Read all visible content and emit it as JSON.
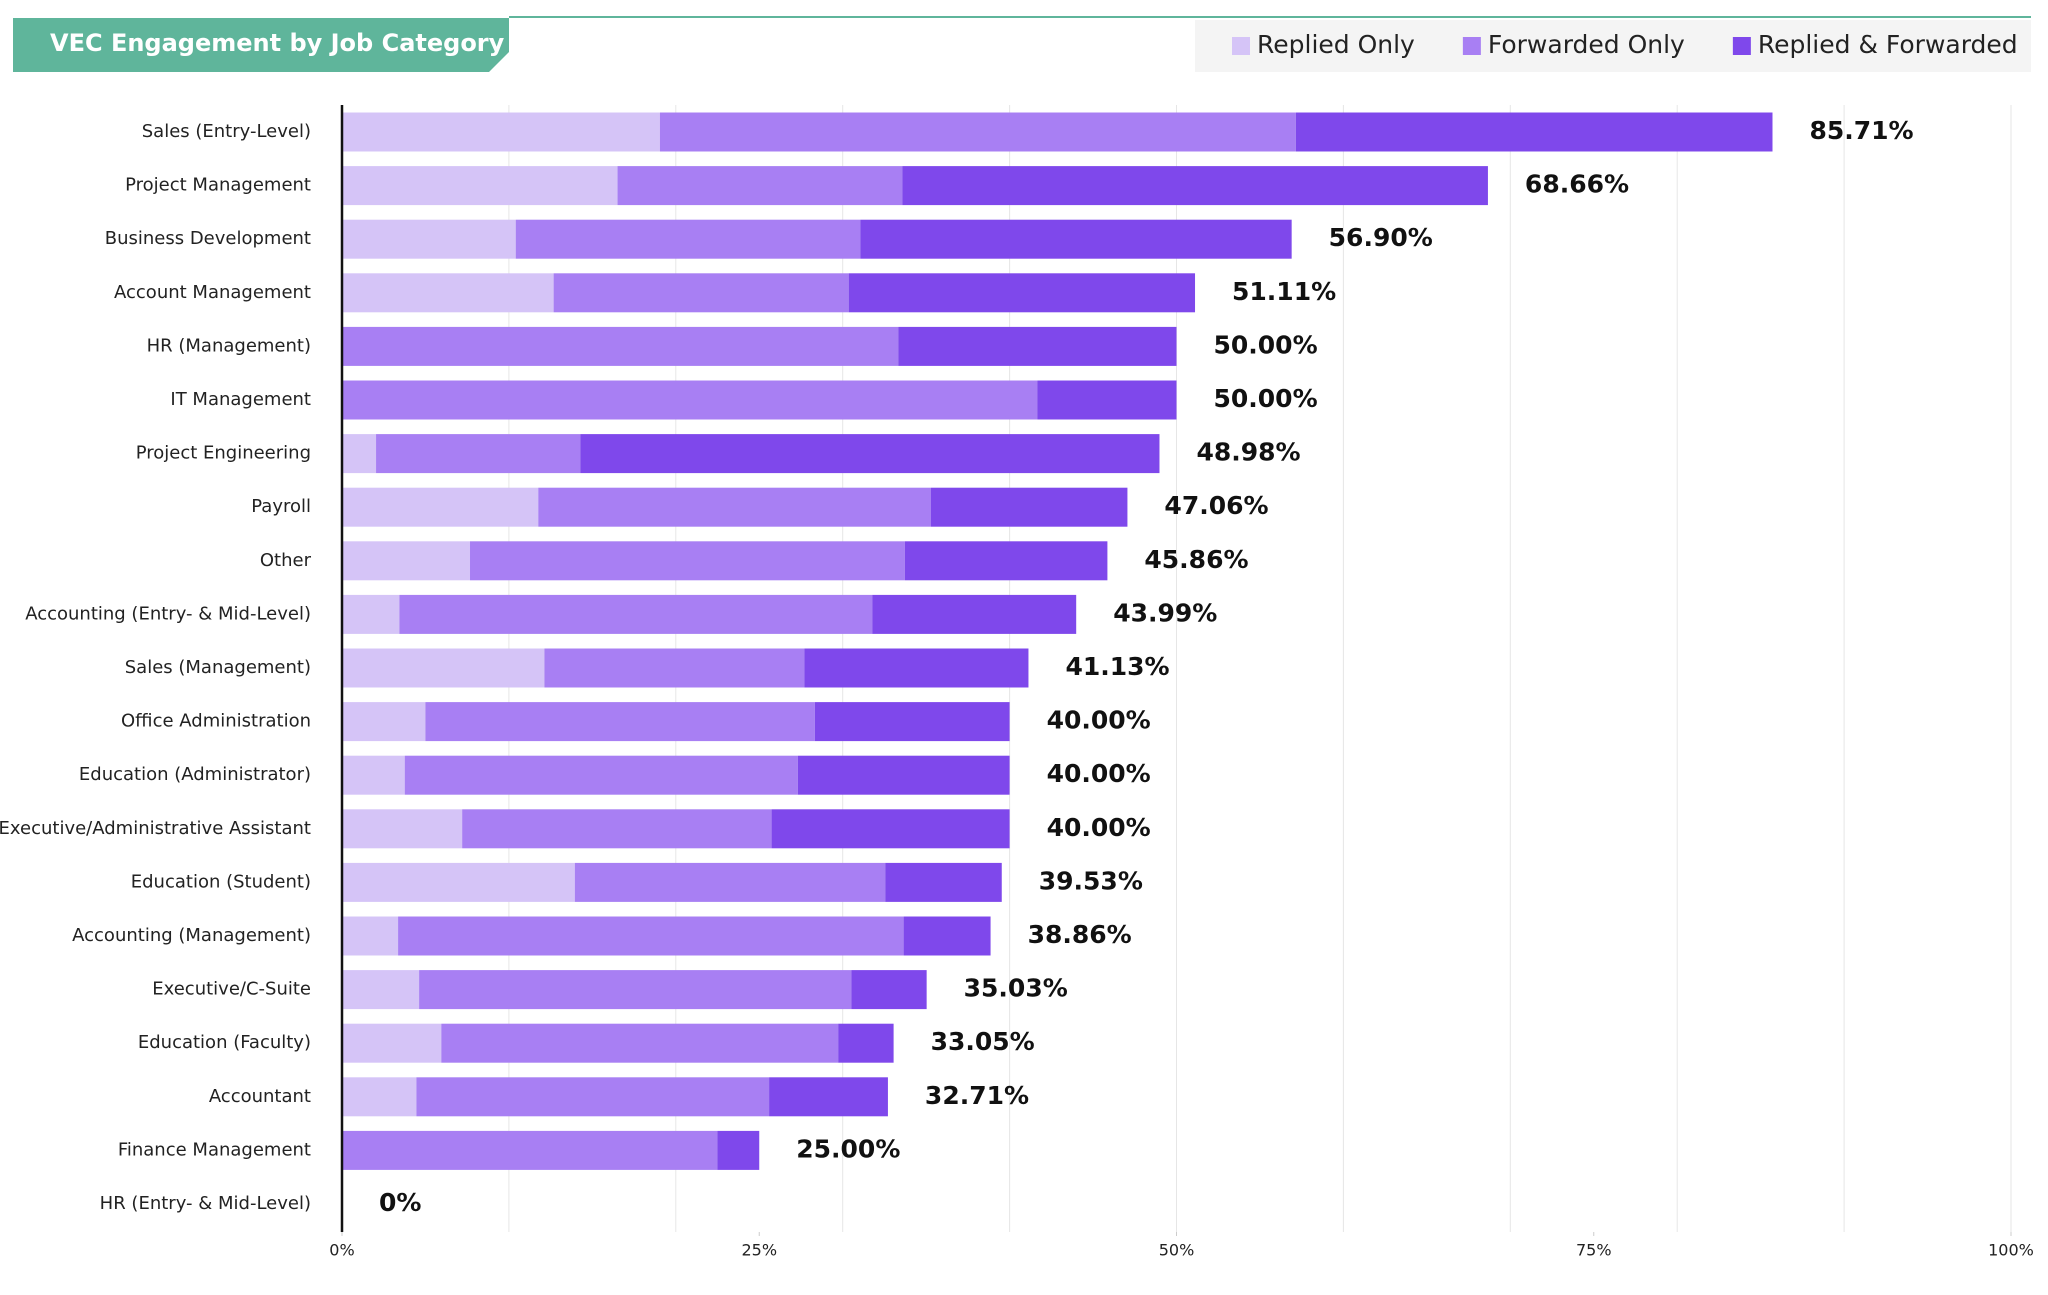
{
  "chart_data": {
    "type": "stacked-bar-horizontal",
    "title": "VEC Engagement by Job Category",
    "categories": [
      "Sales (Entry-Level)",
      "Project Management",
      "Business Development",
      "Account Management",
      "HR (Management)",
      "IT Management",
      "Project Engineering",
      "Payroll",
      "Other",
      "Accounting (Entry- & Mid-Level)",
      "Sales (Management)",
      "Office Administration",
      "Education (Administrator)",
      "Executive/Administrative Assistant",
      "Education (Student)",
      "Accounting (Management)",
      "Executive/C-Suite",
      "Education (Faculty)",
      "Accountant",
      "Finance Management",
      "HR (Entry- & Mid-Level)"
    ],
    "series": [
      {
        "name": "Replied Only",
        "color": "#d5c4f7",
        "values": [
          19.05,
          16.51,
          10.41,
          12.68,
          0,
          0,
          2.04,
          11.76,
          7.67,
          3.44,
          12.13,
          5.0,
          3.76,
          7.2,
          13.95,
          3.36,
          4.62,
          5.95,
          4.46,
          0,
          0
        ]
      },
      {
        "name": "Forwarded Only",
        "color": "#a87ff3",
        "values": [
          38.1,
          17.06,
          20.65,
          17.68,
          33.33,
          41.67,
          12.24,
          23.53,
          26.05,
          28.33,
          15.57,
          23.33,
          23.55,
          18.54,
          18.6,
          30.29,
          25.9,
          23.78,
          21.13,
          22.5,
          0
        ]
      },
      {
        "name": "Replied & Forwarded",
        "color": "#7f48eb",
        "values": [
          28.56,
          35.09,
          25.84,
          20.75,
          16.67,
          8.33,
          34.7,
          11.77,
          12.14,
          12.22,
          13.43,
          11.67,
          12.69,
          14.26,
          6.98,
          5.21,
          4.51,
          3.32,
          7.12,
          2.5,
          0
        ]
      }
    ],
    "totals": [
      85.71,
      68.66,
      56.9,
      51.11,
      50,
      50,
      48.98,
      47.06,
      45.86,
      43.99,
      41.13,
      40,
      40,
      40,
      39.53,
      38.86,
      35.03,
      33.05,
      32.71,
      25,
      0
    ],
    "value_labels": [
      "85.71%",
      "68.66%",
      "56.90%",
      "51.11%",
      "50.00%",
      "50.00%",
      "48.98%",
      "47.06%",
      "45.86%",
      "43.99%",
      "41.13%",
      "40.00%",
      "40.00%",
      "40.00%",
      "39.53%",
      "38.86%",
      "35.03%",
      "33.05%",
      "32.71%",
      "25.00%",
      "0%"
    ],
    "xlim": [
      0,
      100
    ],
    "xticks": [
      {
        "value": 0,
        "label": "0%"
      },
      {
        "value": 25,
        "label": "25%"
      },
      {
        "value": 50,
        "label": "50%"
      },
      {
        "value": 75,
        "label": "75%"
      },
      {
        "value": 100,
        "label": "100%"
      }
    ],
    "xgrid": [
      10,
      20,
      30,
      40,
      50,
      60,
      70,
      80,
      90,
      100
    ],
    "legend": "top-right"
  }
}
